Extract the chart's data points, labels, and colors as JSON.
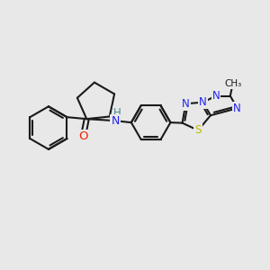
{
  "bg": "#e8e8e8",
  "bc": "#1a1a1a",
  "lw": 1.5,
  "colors": {
    "N": "#2222ee",
    "O": "#ee2200",
    "S": "#bbbb00",
    "H": "#448888",
    "C": "#1a1a1a"
  },
  "figsize": [
    3.0,
    3.0
  ],
  "dpi": 100
}
